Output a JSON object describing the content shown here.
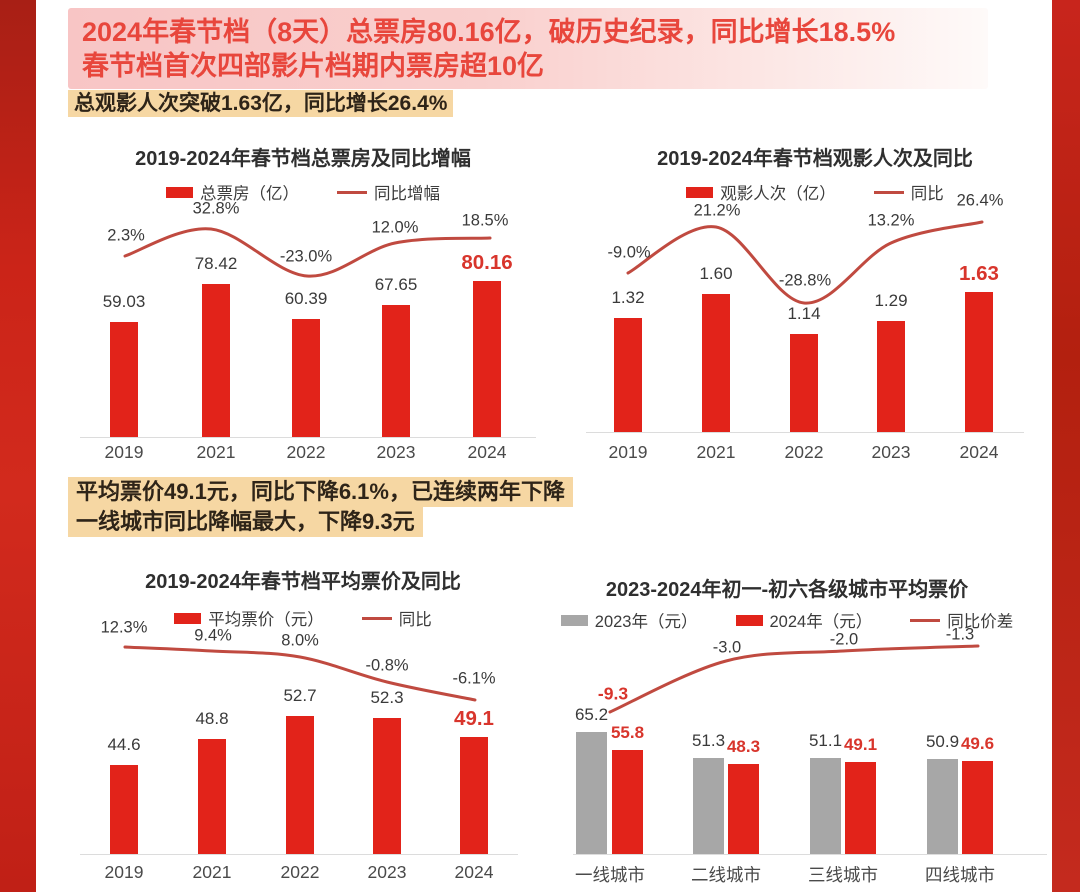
{
  "header": {
    "line1": "2024年春节档（8天）总票房80.16亿，破历史纪录，同比增长18.5%",
    "line2": "春节档首次四部影片档期内票房超10亿"
  },
  "highlights": {
    "h1": "总观影人次突破1.63亿，同比增长26.4%",
    "h2a": "平均票价49.1元，同比下降6.1%，已连续两年下降",
    "h2b": "一线城市同比降幅最大，下降9.3元"
  },
  "colors": {
    "bar_red": "#e2231a",
    "bar_gray": "#a7a7a7",
    "trend_line_red": "#c04a40",
    "emphasis_label_red": "#d8352c",
    "header_pink": "#f8c5c5",
    "header_text_red": "#e8463c",
    "highlight_yellow": "#f6d7a3",
    "side_strip_red": "#c32318"
  },
  "chart_data": [
    {
      "id": "total-box-office",
      "type": "bar",
      "title": "2019-2024年春节档总票房及同比增幅",
      "categories": [
        "2019",
        "2021",
        "2022",
        "2023",
        "2024"
      ],
      "legend": [
        {
          "swatch": "bar-red",
          "label": "总票房（亿）"
        },
        {
          "swatch": "line",
          "label": "同比增幅"
        }
      ],
      "series": [
        {
          "name": "总票房（亿）",
          "role": "bar",
          "color": "red",
          "values": [
            59.03,
            78.42,
            60.39,
            67.65,
            80.16
          ],
          "labels": [
            "59.03",
            "78.42",
            "60.39",
            "67.65",
            "80.16"
          ],
          "emphasis_index": 4
        },
        {
          "name": "同比增幅",
          "role": "line",
          "values": [
            2.3,
            32.8,
            -23.0,
            12.0,
            18.5
          ],
          "labels": [
            "2.3%",
            "32.8%",
            "-23.0%",
            "12.0%",
            "18.5%"
          ],
          "emphasis_index": -1
        }
      ],
      "ylim": [
        0,
        90
      ],
      "grid": false,
      "legend_position": "top"
    },
    {
      "id": "attendance",
      "type": "bar",
      "title": "2019-2024年春节档观影人次及同比",
      "categories": [
        "2019",
        "2021",
        "2022",
        "2023",
        "2024"
      ],
      "legend": [
        {
          "swatch": "bar-red",
          "label": "观影人次（亿）"
        },
        {
          "swatch": "line",
          "label": "同比"
        }
      ],
      "series": [
        {
          "name": "观影人次（亿）",
          "role": "bar",
          "color": "red",
          "values": [
            1.32,
            1.6,
            1.14,
            1.29,
            1.63
          ],
          "labels": [
            "1.32",
            "1.60",
            "1.14",
            "1.29",
            "1.63"
          ],
          "emphasis_index": 4
        },
        {
          "name": "同比",
          "role": "line",
          "values": [
            -9.0,
            21.2,
            -28.8,
            13.2,
            26.4
          ],
          "labels": [
            "-9.0%",
            "21.2%",
            "-28.8%",
            "13.2%",
            "26.4%"
          ],
          "emphasis_index": -1
        }
      ],
      "ylim": [
        0,
        1.8
      ],
      "grid": false,
      "legend_position": "top"
    },
    {
      "id": "avg-price",
      "type": "bar",
      "title": "2019-2024年春节档平均票价及同比",
      "categories": [
        "2019",
        "2021",
        "2022",
        "2023",
        "2024"
      ],
      "legend": [
        {
          "swatch": "bar-red",
          "label": "平均票价（元）"
        },
        {
          "swatch": "line",
          "label": "同比"
        }
      ],
      "series": [
        {
          "name": "平均票价（元）",
          "role": "bar",
          "color": "red",
          "values": [
            44.6,
            48.8,
            52.7,
            52.3,
            49.1
          ],
          "labels": [
            "44.6",
            "48.8",
            "52.7",
            "52.3",
            "49.1"
          ],
          "emphasis_index": 4
        },
        {
          "name": "同比",
          "role": "line",
          "values": [
            12.3,
            9.4,
            8.0,
            -0.8,
            -6.1
          ],
          "labels": [
            "12.3%",
            "9.4%",
            "8.0%",
            "-0.8%",
            "-6.1%"
          ],
          "emphasis_index": -1
        }
      ],
      "ylim": [
        30,
        55
      ],
      "grid": false,
      "legend_position": "top"
    },
    {
      "id": "city-price",
      "type": "grouped-bar",
      "title": "2023-2024年初一-初六各级城市平均票价",
      "categories": [
        "一线城市",
        "二线城市",
        "三线城市",
        "四线城市"
      ],
      "legend": [
        {
          "swatch": "bar-gray",
          "label": "2023年（元）"
        },
        {
          "swatch": "bar-red",
          "label": "2024年（元）"
        },
        {
          "swatch": "line",
          "label": "同比价差"
        }
      ],
      "series": [
        {
          "name": "2023年（元）",
          "role": "bar",
          "color": "gray",
          "values": [
            65.2,
            51.3,
            51.1,
            50.9
          ],
          "labels": [
            "65.2",
            "51.3",
            "51.1",
            "50.9"
          ],
          "emphasis_index": -1
        },
        {
          "name": "2024年（元）",
          "role": "bar",
          "color": "red",
          "values": [
            55.8,
            48.3,
            49.1,
            49.6
          ],
          "labels": [
            "55.8",
            "48.3",
            "49.1",
            "49.6"
          ],
          "red_labels": true,
          "emphasis_index": -1
        },
        {
          "name": "同比价差",
          "role": "line",
          "values": [
            -9.3,
            -3.0,
            -2.0,
            -1.3
          ],
          "labels": [
            "-9.3",
            "-3.0",
            "-2.0",
            "-1.3"
          ],
          "emphasis_index": 0
        }
      ],
      "ylim": [
        0,
        70
      ],
      "grid": false,
      "legend_position": "top"
    }
  ]
}
